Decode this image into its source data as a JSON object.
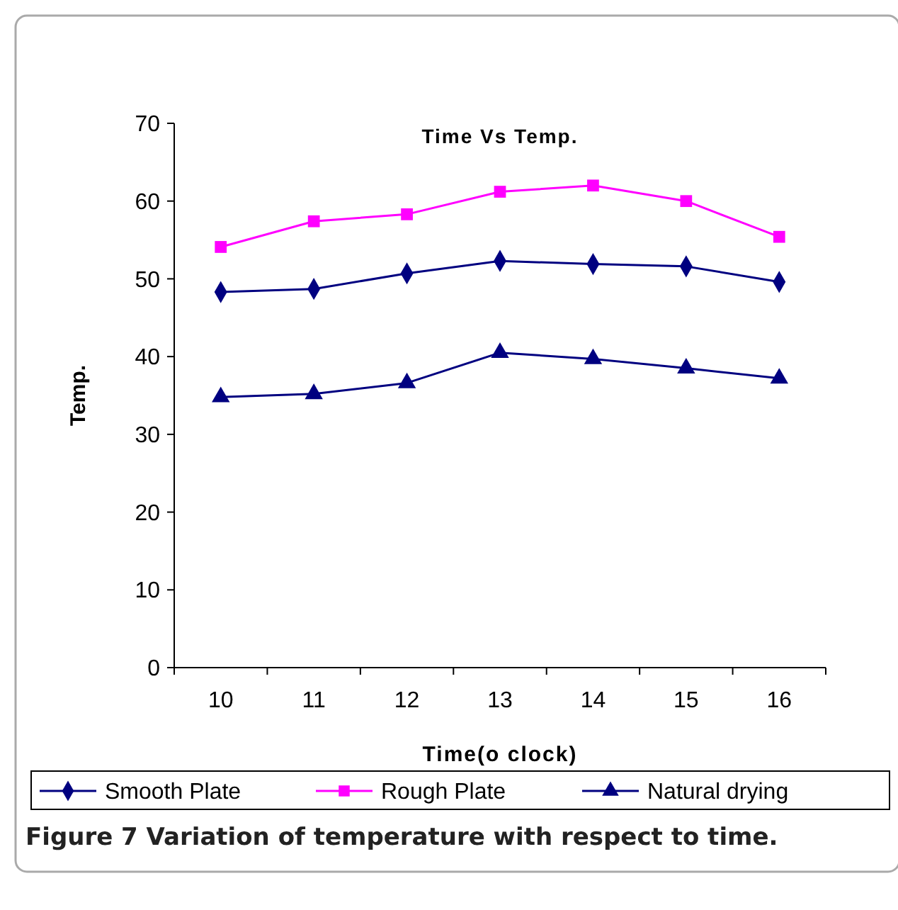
{
  "chart_data": {
    "type": "line",
    "title": "Time Vs Temp.",
    "xlabel": "Time(o clock)",
    "ylabel": "Temp.",
    "categories": [
      "10",
      "11",
      "12",
      "13",
      "14",
      "15",
      "16"
    ],
    "series": [
      {
        "name": "Smooth Plate",
        "color": "#000080",
        "marker": "diamond",
        "values": [
          48.3,
          48.7,
          50.7,
          52.3,
          51.9,
          51.6,
          49.6
        ]
      },
      {
        "name": "Rough Plate",
        "color": "#ff00ff",
        "marker": "square",
        "values": [
          54.1,
          57.4,
          58.3,
          61.2,
          62.0,
          60.0,
          55.4
        ]
      },
      {
        "name": "Natural drying",
        "color": "#000080",
        "marker": "triangle",
        "values": [
          34.8,
          35.2,
          36.6,
          40.5,
          39.7,
          38.5,
          37.2
        ]
      }
    ],
    "ylim": [
      0,
      70
    ],
    "yticks": [
      0,
      10,
      20,
      30,
      40,
      50,
      60,
      70
    ],
    "grid": false,
    "legend": "bottom",
    "line_style": "solid",
    "annotations": [
      "Figure 7 Variation of temperature with respect to time."
    ]
  }
}
